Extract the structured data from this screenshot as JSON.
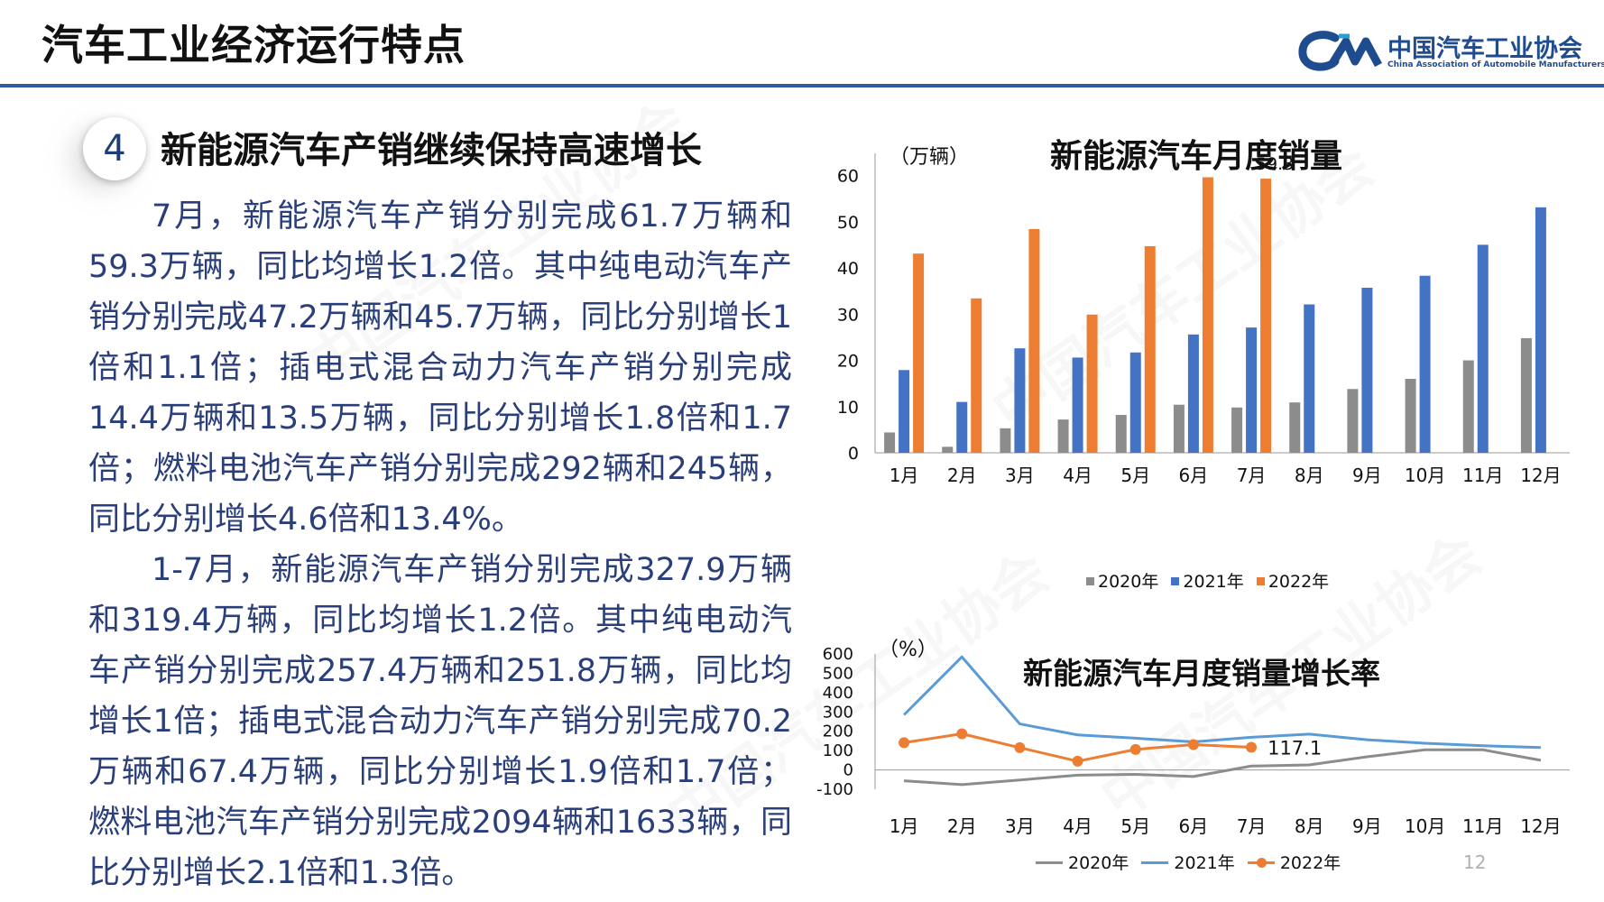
{
  "header": {
    "title": "汽车工业经济运行特点",
    "logo_name": "中国汽车工业协会",
    "logo_en": "China Association of Automobile Manufacturers"
  },
  "section": {
    "number": "4",
    "title": "新能源汽车产销继续保持高速增长"
  },
  "body": {
    "p1": "7月，新能源汽车产销分别完成61.7万辆和59.3万辆，同比均增长1.2倍。其中纯电动汽车产销分别完成47.2万辆和45.7万辆，同比分别增长1倍和1.1倍；插电式混合动力汽车产销分别完成14.4万辆和13.5万辆，同比分别增长1.8倍和1.7倍；燃料电池汽车产销分别完成292辆和245辆，同比分别增长4.6倍和13.4%。",
    "p2": "1-7月，新能源汽车产销分别完成327.9万辆和319.4万辆，同比均增长1.2倍。其中纯电动汽车产销分别完成257.4万辆和251.8万辆，同比均增长1倍；插电式混合动力汽车产销分别完成70.2万辆和67.4万辆，同比分别增长1.9倍和1.7倍；燃料电池汽车产销分别完成2094辆和1633辆，同比分别增长2.1倍和1.3倍。"
  },
  "page_number": "12",
  "chart_data": [
    {
      "type": "bar",
      "title": "新能源汽车月度销量",
      "unit": "（万辆）",
      "categories": [
        "1月",
        "2月",
        "3月",
        "4月",
        "5月",
        "6月",
        "7月",
        "8月",
        "9月",
        "10月",
        "11月",
        "12月"
      ],
      "yticks": [
        "0",
        "10",
        "20",
        "30",
        "40",
        "50",
        "60"
      ],
      "ylim": [
        0,
        64
      ],
      "series": [
        {
          "name": "2020年",
          "color": "#8c8c8c",
          "values": [
            4.4,
            1.3,
            5.3,
            7.2,
            8.2,
            10.4,
            9.8,
            10.9,
            13.8,
            16.0,
            20.0,
            24.8
          ]
        },
        {
          "name": "2021年",
          "color": "#4472c4",
          "values": [
            17.9,
            11.0,
            22.6,
            20.6,
            21.7,
            25.6,
            27.1,
            32.1,
            35.7,
            38.3,
            45.0,
            53.1
          ]
        },
        {
          "name": "2022年",
          "color": "#ed7d31",
          "values": [
            43.1,
            33.4,
            48.4,
            29.9,
            44.7,
            59.6,
            59.3,
            null,
            null,
            null,
            null,
            null
          ]
        }
      ],
      "data_labels": [
        {
          "series": "2022年",
          "category": "7月",
          "text": "59.3"
        }
      ],
      "legend": "bottom"
    },
    {
      "type": "line",
      "title": "新能源汽车月度销量增长率",
      "unit": "（%）",
      "categories": [
        "1月",
        "2月",
        "3月",
        "4月",
        "5月",
        "6月",
        "7月",
        "8月",
        "9月",
        "10月",
        "11月",
        "12月"
      ],
      "yticks": [
        "-100",
        "0",
        "100",
        "200",
        "300",
        "400",
        "500",
        "600"
      ],
      "ylim": [
        -100,
        600
      ],
      "series": [
        {
          "name": "2020年",
          "color": "#8c8c8c",
          "values": [
            -56,
            -76,
            -52,
            -27,
            -23,
            -34,
            20,
            26,
            68,
            104,
            104,
            50
          ]
        },
        {
          "name": "2021年",
          "color": "#5b9bd5",
          "values": [
            285,
            585,
            238,
            181,
            164,
            145,
            169,
            185,
            156,
            138,
            125,
            116
          ]
        },
        {
          "name": "2022年",
          "color": "#ed7d31",
          "values": [
            141,
            187,
            115,
            45,
            106,
            131,
            117.1,
            null,
            null,
            null,
            null,
            null
          ]
        }
      ],
      "data_labels": [
        {
          "series": "2022年",
          "category": "7月",
          "text": "117.1"
        }
      ],
      "legend": "bottom"
    }
  ]
}
